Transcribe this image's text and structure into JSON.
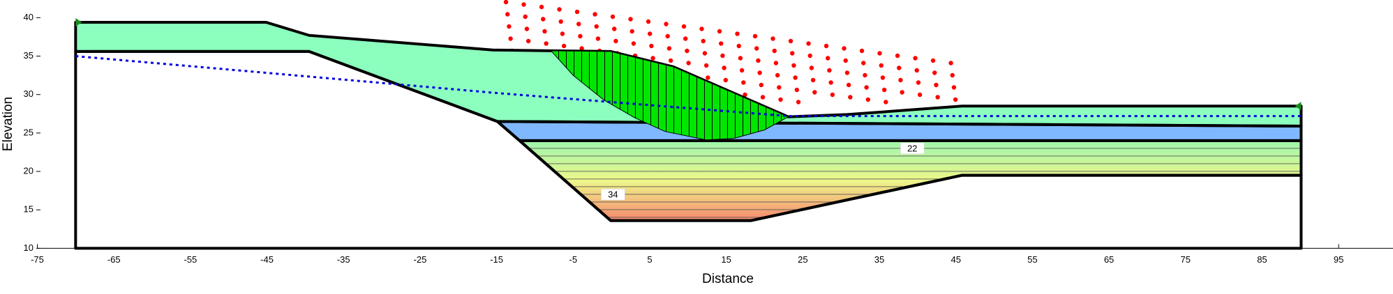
{
  "chart_data": {
    "type": "section",
    "x_label": "Distance",
    "y_label": "Elevation",
    "xlim": [
      -75,
      102.1
    ],
    "ylim": [
      10,
      42.3
    ],
    "xticks": [
      -75,
      -65,
      -55,
      -45,
      -35,
      -25,
      -15,
      -5,
      5,
      15,
      25,
      35,
      45,
      55,
      65,
      75,
      85,
      95
    ],
    "yticks": [
      10,
      15,
      20,
      25,
      30,
      35,
      40
    ],
    "regions": [
      {
        "color": "#8cffbe",
        "points": [
          [
            -70,
            39.4
          ],
          [
            -45.1,
            39.4
          ],
          [
            -39.5,
            37.7
          ],
          [
            -15.5,
            35.8
          ],
          [
            -7.9,
            35.7
          ],
          [
            -0.1,
            35.6
          ],
          [
            8.1,
            33.6
          ],
          [
            23.1,
            27.1
          ],
          [
            30.8,
            27.4
          ],
          [
            45.8,
            28.5
          ],
          [
            90.1,
            28.5
          ],
          [
            90.1,
            25.9
          ],
          [
            -14.9,
            26.5
          ],
          [
            -39.5,
            35.6
          ],
          [
            -70,
            35.6
          ]
        ]
      },
      {
        "color": "#80b8ff",
        "points": [
          [
            -14.9,
            26.5
          ],
          [
            90.1,
            25.9
          ],
          [
            90.1,
            24
          ],
          [
            -12,
            24
          ]
        ]
      },
      {
        "gradient": [
          "#9cf5ad",
          "#eef78a",
          "#f7876e"
        ],
        "points": [
          [
            -12,
            24
          ],
          [
            90.1,
            24
          ],
          [
            90.1,
            19.5
          ],
          [
            45.8,
            19.5
          ],
          [
            18.2,
            13.6
          ],
          [
            -0.1,
            13.6
          ]
        ]
      },
      {
        "color": "#ffffff",
        "points": [
          [
            -70,
            35.6
          ],
          [
            -39.5,
            35.6
          ],
          [
            -14.9,
            26.5
          ],
          [
            -12,
            24
          ],
          [
            -0.1,
            13.6
          ],
          [
            18.2,
            13.6
          ],
          [
            45.8,
            19.5
          ],
          [
            90.1,
            19.5
          ],
          [
            90.1,
            10
          ],
          [
            -70,
            10
          ]
        ]
      }
    ],
    "slip_surface": {
      "color": "#00e600",
      "points": [
        [
          -7.9,
          35.7
        ],
        [
          -5,
          32.5
        ],
        [
          -1,
          29.3
        ],
        [
          3,
          27.0
        ],
        [
          7,
          25.2
        ],
        [
          12.4,
          24.1
        ],
        [
          16,
          24.3
        ],
        [
          20,
          25.4
        ],
        [
          23.1,
          27.1
        ],
        [
          8.1,
          33.6
        ],
        [
          -0.1,
          35.6
        ]
      ]
    },
    "water_table": {
      "color": "#0000e0",
      "points": [
        [
          -70,
          35
        ],
        [
          -15,
          30.2
        ],
        [
          23.1,
          27.2
        ],
        [
          90.1,
          27.2
        ]
      ]
    },
    "annotations": [
      {
        "text": "22",
        "x": 39.3,
        "y": 23
      },
      {
        "text": "34",
        "x": 0.2,
        "y": 17
      }
    ]
  }
}
